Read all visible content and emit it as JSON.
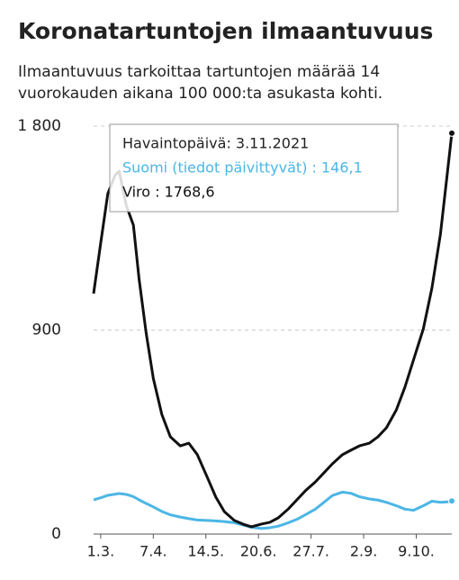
{
  "chart_data": {
    "type": "line",
    "title": "Koronatartuntojen ilmaantuvuus",
    "subtitle": [
      "Ilmaantuvuus tarkoittaa tartuntojen määrää 14",
      "vuorokauden aikana 100 000:ta asukasta kohti."
    ],
    "x": [
      -5,
      0,
      5,
      10,
      13,
      18,
      23,
      27,
      32,
      37,
      43,
      49,
      56,
      62,
      68,
      75,
      81,
      87,
      94,
      100,
      106,
      113,
      119,
      125,
      132,
      138,
      144,
      151,
      157,
      163,
      170,
      176,
      182,
      189,
      195,
      201,
      208,
      214,
      220,
      227,
      233,
      239,
      244,
      247
    ],
    "xlim": [
      -5,
      247
    ],
    "xticks": [
      {
        "value": 0,
        "label": "1.3."
      },
      {
        "value": 37,
        "label": "7.4."
      },
      {
        "value": 74,
        "label": "14.5."
      },
      {
        "value": 111,
        "label": "20.6."
      },
      {
        "value": 148,
        "label": "27.7."
      },
      {
        "value": 185,
        "label": "2.9."
      },
      {
        "value": 222,
        "label": "9.10."
      }
    ],
    "ylim": [
      0,
      1800
    ],
    "yticks": [
      0,
      900,
      {
        "value": 1800,
        "label": "1 800"
      }
    ],
    "grid": true,
    "series": [
      {
        "name": "Suomi",
        "color": "#4cb6e6",
        "values": [
          151,
          160,
          171,
          176,
          179,
          175,
          165,
          151,
          135,
          120,
          100,
          85,
          75,
          68,
          62,
          60,
          58,
          55,
          50,
          40,
          30,
          25,
          28,
          35,
          50,
          65,
          85,
          110,
          140,
          170,
          185,
          180,
          165,
          155,
          150,
          140,
          125,
          110,
          105,
          125,
          145,
          140,
          142,
          146.1
        ]
      },
      {
        "name": "Viro",
        "color": "#111111",
        "values": [
          1061,
          1284,
          1502,
          1582,
          1601,
          1450,
          1363,
          1125,
          886,
          687,
          528,
          429,
          389,
          401,
          350,
          250,
          163,
          99,
          60,
          44,
          32,
          44,
          52,
          72,
          111,
          151,
          191,
          230,
          270,
          310,
          350,
          370,
          389,
          401,
          429,
          469,
          548,
          648,
          767,
          906,
          1085,
          1323,
          1600,
          1768.6
        ]
      }
    ],
    "tooltip": [
      "Havaintopäivä: 3.11.2021",
      "Suomi (tiedot päivittyvät) : 146,1",
      "Viro : 1768,6"
    ]
  }
}
